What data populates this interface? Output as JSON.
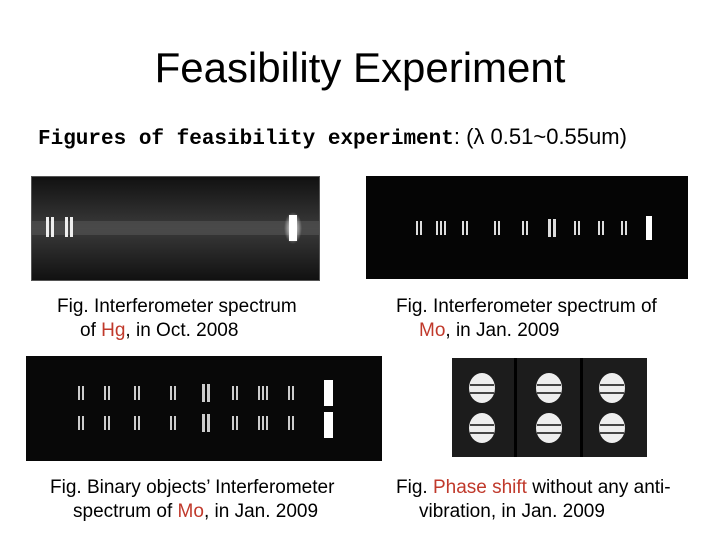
{
  "slide": {
    "title": "Feasibility Experiment",
    "subtitle_bold": "Figures of feasibility experiment",
    "subtitle_rest": ": (λ 0.51~0.55um)"
  },
  "captions": {
    "hg": {
      "line1": "Fig. Interferometer spectrum",
      "line2_pre": "of ",
      "line2_red": "Hg",
      "line2_post": ", in Oct. 2008"
    },
    "mo": {
      "line1": "Fig. Interferometer spectrum of",
      "line2_red": "Mo",
      "line2_post": ", in Jan. 2009"
    },
    "binary": {
      "line1": "Fig. Binary objects’ Interferometer",
      "line2_pre": "spectrum of ",
      "line2_red": "Mo",
      "line2_post": ", in Jan. 2009"
    },
    "phase": {
      "line1_pre": "Fig. ",
      "line1_red": "Phase shift",
      "line1_post": " without any anti-",
      "line2": "vibration, in Jan. 2009"
    }
  },
  "colors": {
    "highlight": "#c0392b"
  }
}
